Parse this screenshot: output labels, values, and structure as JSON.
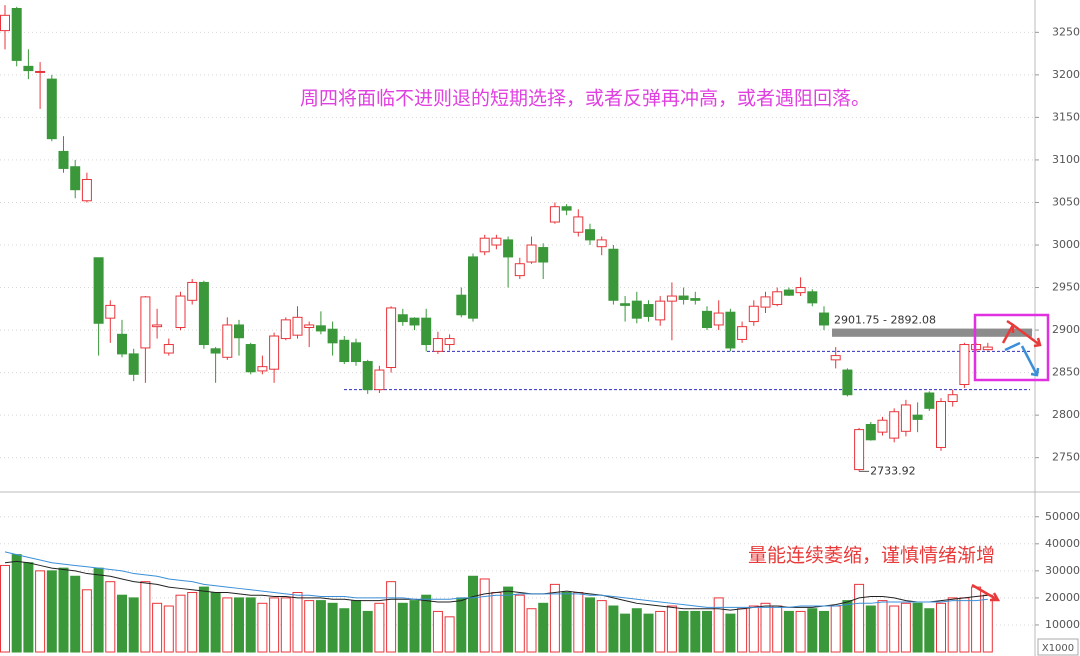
{
  "chart_data": [
    {
      "type": "candlestick",
      "title": "周四将面临不进则退的短期选择，或者反弹再冲高，或者遇阻回落。",
      "up_color": "#e8353b",
      "down_color": "#3a983a",
      "ylim": [
        2712,
        3288
      ],
      "yticks": [
        2750,
        2800,
        2850,
        2900,
        2950,
        3000,
        3050,
        3100,
        3150,
        3200,
        3250
      ],
      "grid": true,
      "open": [
        3252,
        3278,
        3210,
        3203,
        3195,
        3110,
        3092,
        3052,
        2985,
        2914,
        2895,
        2872,
        2879,
        2904,
        2873,
        2903,
        2935,
        2956,
        2878,
        2868,
        2906,
        2883,
        2852,
        2854,
        2890,
        2894,
        2903,
        2905,
        2901,
        2888,
        2885,
        2863,
        2830,
        2856,
        2918,
        2914,
        2914,
        2875,
        2883,
        2941,
        2986,
        2992,
        3000,
        3006,
        2964,
        2980,
        2997,
        3027,
        3045,
        3015,
        3018,
        2998,
        2995,
        2931,
        2934,
        2930,
        2912,
        2934,
        2940,
        2937,
        2922,
        2906,
        2921,
        2889,
        2910,
        2927,
        2930,
        2947,
        2944,
        2945,
        2920,
        2865,
        2853,
        2736,
        2789,
        2780,
        2773,
        2781,
        2800,
        2826,
        2762,
        2816,
        2836,
        2877,
        2877
      ],
      "high": [
        3282,
        3280,
        3230,
        3215,
        3200,
        3128,
        3100,
        3085,
        2985,
        2935,
        2912,
        2878,
        2940,
        2925,
        2890,
        2945,
        2960,
        2958,
        2880,
        2915,
        2912,
        2885,
        2870,
        2897,
        2915,
        2928,
        2910,
        2922,
        2910,
        2893,
        2890,
        2865,
        2858,
        2928,
        2925,
        2915,
        2925,
        2898,
        2895,
        2950,
        2990,
        3012,
        3012,
        3010,
        2985,
        3010,
        3002,
        3050,
        3048,
        3042,
        3025,
        3010,
        3000,
        2940,
        2945,
        2935,
        2940,
        2956,
        2950,
        2945,
        2928,
        2935,
        2925,
        2910,
        2935,
        2945,
        2950,
        2950,
        2962,
        2948,
        2928,
        2880,
        2855,
        2785,
        2792,
        2798,
        2808,
        2818,
        2815,
        2828,
        2820,
        2830,
        2885,
        2885,
        2885
      ],
      "low": [
        3230,
        3210,
        3195,
        3160,
        3122,
        3085,
        3055,
        3050,
        2870,
        2885,
        2868,
        2840,
        2838,
        2890,
        2870,
        2900,
        2930,
        2878,
        2838,
        2865,
        2870,
        2848,
        2848,
        2838,
        2888,
        2890,
        2880,
        2895,
        2870,
        2860,
        2858,
        2825,
        2826,
        2850,
        2905,
        2900,
        2875,
        2872,
        2876,
        2915,
        2910,
        2988,
        2995,
        2950,
        2960,
        2978,
        2960,
        3025,
        3035,
        3010,
        3000,
        2988,
        2930,
        2910,
        2908,
        2910,
        2905,
        2888,
        2930,
        2930,
        2900,
        2900,
        2875,
        2885,
        2905,
        2920,
        2928,
        2940,
        2940,
        2928,
        2900,
        2855,
        2822,
        2733.92,
        2770,
        2776,
        2768,
        2775,
        2780,
        2805,
        2758,
        2810,
        2832,
        2875,
        2876
      ],
      "close": [
        3270,
        3217,
        3205,
        3204,
        3125,
        3090,
        3065,
        3077,
        2908,
        2929,
        2872,
        2848,
        2939,
        2906,
        2883,
        2940,
        2956,
        2883,
        2873,
        2906,
        2891,
        2851,
        2857,
        2893,
        2912,
        2915,
        2906,
        2899,
        2885,
        2863,
        2863,
        2830,
        2853,
        2926,
        2910,
        2906,
        2883,
        2890,
        2890,
        2918,
        2914,
        3008,
        3008,
        2986,
        2978,
        3000,
        2980,
        3045,
        3041,
        3033,
        3006,
        3006,
        2935,
        2929,
        2914,
        2916,
        2934,
        2940,
        2936,
        2935,
        2903,
        2920,
        2879,
        2904,
        2928,
        2939,
        2945,
        2941,
        2950,
        2932,
        2906,
        2870,
        2824,
        2783,
        2771,
        2794,
        2804,
        2812,
        2795,
        2808,
        2816,
        2824,
        2883,
        2883,
        2880
      ],
      "gap": {
        "values": [
          2901.75,
          2892.08
        ],
        "label": "2901.75 - 2892.08",
        "color": "#8c8c8c"
      },
      "support_lines": [
        2875,
        2830
      ],
      "low_label": 2733.92
    },
    {
      "type": "bar",
      "annotation": "量能连续萎缩，谨慎情绪渐增",
      "unit_label": "X1000",
      "ylim": [
        0,
        61000
      ],
      "yticks": [
        10000,
        20000,
        30000,
        40000,
        50000
      ],
      "values": [
        32000,
        36000,
        33000,
        30000,
        30000,
        31000,
        28000,
        23000,
        31000,
        26000,
        21000,
        20000,
        26000,
        18000,
        17000,
        21000,
        22000,
        24000,
        22000,
        20000,
        20000,
        20000,
        18000,
        20000,
        20000,
        22000,
        19000,
        19000,
        18000,
        16000,
        19000,
        15000,
        18000,
        26000,
        18000,
        19000,
        21000,
        15000,
        13000,
        20000,
        28000,
        27000,
        22000,
        24000,
        21000,
        16000,
        18000,
        25000,
        22000,
        22000,
        20000,
        19000,
        17000,
        14000,
        16000,
        14000,
        15000,
        17000,
        15000,
        15000,
        15000,
        20000,
        14000,
        16000,
        17000,
        18000,
        17000,
        15000,
        15000,
        16000,
        15000,
        17000,
        19000,
        25000,
        17000,
        19000,
        17000,
        18000,
        18000,
        16000,
        18000,
        20000,
        20000,
        24000,
        21000
      ],
      "lines": [
        {
          "color": "#222222",
          "values": [
            33000,
            33500,
            33000,
            32000,
            31000,
            30500,
            30000,
            29000,
            28500,
            28000,
            27000,
            26000,
            25500,
            25000,
            24000,
            23500,
            23000,
            22500,
            22000,
            22000,
            21500,
            21000,
            21000,
            20500,
            20500,
            20000,
            20000,
            20000,
            19500,
            19500,
            19000,
            19000,
            19000,
            19500,
            19500,
            19500,
            19000,
            18500,
            18500,
            19000,
            20500,
            21500,
            22000,
            22500,
            22000,
            21500,
            21500,
            22000,
            22500,
            22000,
            21500,
            21000,
            20000,
            19000,
            18000,
            17500,
            17000,
            16500,
            16000,
            16000,
            16000,
            16000,
            15500,
            16000,
            16500,
            17000,
            17000,
            16500,
            16500,
            16500,
            17000,
            17500,
            18500,
            20000,
            20500,
            20500,
            20000,
            19000,
            18500,
            18500,
            19000,
            19500,
            20000,
            20500,
            21000
          ]
        },
        {
          "color": "#3a8fd8",
          "values": [
            37000,
            36000,
            35000,
            34000,
            33000,
            32500,
            32000,
            31500,
            31000,
            30500,
            30000,
            29000,
            28500,
            28000,
            27000,
            26500,
            26000,
            25000,
            24500,
            24000,
            23500,
            23000,
            22500,
            22000,
            21500,
            21000,
            21000,
            20500,
            20500,
            20500,
            20000,
            20000,
            20000,
            20000,
            20000,
            19500,
            19500,
            19500,
            19500,
            20000,
            20000,
            20500,
            21000,
            21000,
            21500,
            21500,
            21500,
            21500,
            21500,
            21500,
            21000,
            21000,
            20500,
            20000,
            19500,
            19000,
            18500,
            18000,
            17500,
            17000,
            16500,
            16500,
            16500,
            16500,
            16500,
            16500,
            16500,
            16500,
            17000,
            17000,
            17000,
            17000,
            17500,
            18000,
            18000,
            18500,
            18500,
            18500,
            18500,
            18500,
            18500,
            19000,
            19000,
            19000,
            19500
          ]
        }
      ]
    }
  ]
}
